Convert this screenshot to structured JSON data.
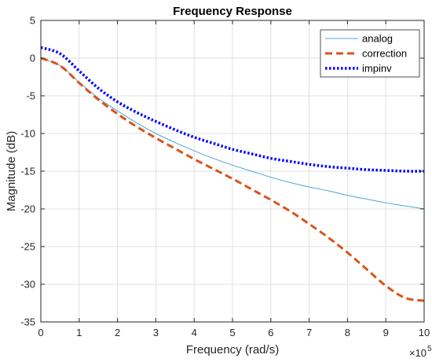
{
  "chart_data": {
    "type": "line",
    "title": "Frequency Response",
    "xlabel": "Frequency (rad/s)",
    "ylabel": "Magnitude (dB)",
    "x_multiplier": "×10",
    "x_multiplier_exp": "5",
    "xlim": [
      0,
      10
    ],
    "ylim": [
      -35,
      5
    ],
    "xticks": [
      0,
      1,
      2,
      3,
      4,
      5,
      6,
      7,
      8,
      9,
      10
    ],
    "yticks": [
      5,
      0,
      -5,
      -10,
      -15,
      -20,
      -25,
      -30,
      -35
    ],
    "grid": true,
    "legend_position": "top-right",
    "series": [
      {
        "name": "analog",
        "style": "solid",
        "color": "#4da6d4",
        "x": [
          0,
          0.5,
          1,
          1.5,
          2,
          2.5,
          3,
          3.5,
          4,
          4.5,
          5,
          5.5,
          6,
          6.5,
          7,
          7.5,
          8,
          8.5,
          9,
          9.5,
          10
        ],
        "y": [
          0,
          -1.0,
          -3.2,
          -5.3,
          -7.0,
          -8.6,
          -10.0,
          -11.2,
          -12.3,
          -13.3,
          -14.2,
          -15.0,
          -15.8,
          -16.5,
          -17.1,
          -17.6,
          -18.2,
          -18.7,
          -19.2,
          -19.6,
          -20.0
        ]
      },
      {
        "name": "correction",
        "style": "dashed",
        "color": "#d95319",
        "x": [
          0,
          0.5,
          1,
          1.5,
          2,
          2.5,
          3,
          3.5,
          4,
          4.5,
          5,
          5.5,
          6,
          6.5,
          7,
          7.5,
          8,
          8.5,
          9,
          9.5,
          10
        ],
        "y": [
          0,
          -1.0,
          -3.3,
          -5.5,
          -7.4,
          -9.1,
          -10.6,
          -12.0,
          -13.4,
          -14.7,
          -16.0,
          -17.4,
          -18.8,
          -20.3,
          -22.0,
          -23.8,
          -25.8,
          -28.0,
          -30.2,
          -31.8,
          -32.2
        ]
      },
      {
        "name": "impinv",
        "style": "dotted",
        "color": "#0000ff",
        "x": [
          0,
          0.5,
          1,
          1.5,
          2,
          2.5,
          3,
          3.5,
          4,
          4.5,
          5,
          5.5,
          6,
          6.5,
          7,
          7.5,
          8,
          8.5,
          9,
          9.5,
          10
        ],
        "y": [
          1.4,
          0.6,
          -1.7,
          -4.0,
          -5.8,
          -7.2,
          -8.4,
          -9.5,
          -10.5,
          -11.3,
          -12.1,
          -12.7,
          -13.3,
          -13.7,
          -14.1,
          -14.4,
          -14.6,
          -14.8,
          -14.9,
          -15.0,
          -15.0
        ]
      }
    ]
  }
}
